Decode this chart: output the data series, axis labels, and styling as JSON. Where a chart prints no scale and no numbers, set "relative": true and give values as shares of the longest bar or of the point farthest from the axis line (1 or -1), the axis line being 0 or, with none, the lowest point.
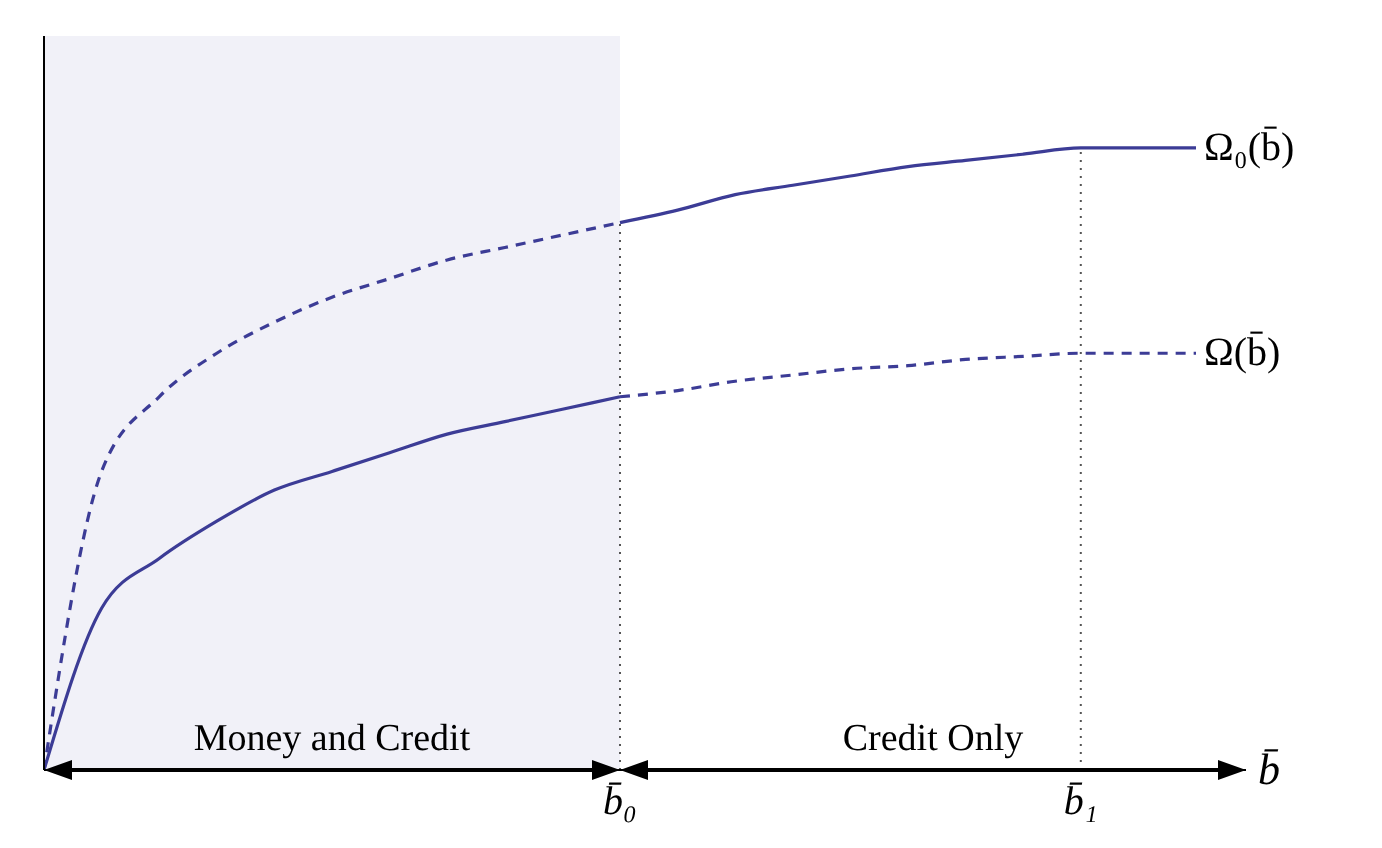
{
  "chart_data": {
    "type": "line",
    "relative": true,
    "xlabel": "b̄",
    "categories": [
      null,
      null,
      null,
      null,
      null,
      null,
      null,
      null,
      null,
      null,
      "b̄₀",
      null,
      null,
      null,
      null,
      null,
      null,
      null,
      "b̄₁",
      null,
      null
    ],
    "series": [
      {
        "color": "#3c3c96",
        "line_style": "dashed",
        "values": [
          0,
          0.48,
          0.6,
          0.67,
          0.72,
          0.76,
          0.79,
          0.82,
          0.84,
          0.86,
          0.88,
          null,
          null,
          null,
          null,
          null,
          null,
          null,
          null,
          null,
          null
        ]
      },
      {
        "name": "Ω₀(b̄)",
        "color": "#3c3c96",
        "line_style": "solid",
        "values": [
          null,
          null,
          null,
          null,
          null,
          null,
          null,
          null,
          null,
          null,
          0.88,
          0.9,
          0.925,
          0.94,
          0.955,
          0.97,
          0.98,
          0.99,
          1,
          1,
          1
        ]
      },
      {
        "color": "#3c3c96",
        "line_style": "solid",
        "values": [
          0,
          0.26,
          0.34,
          0.4,
          0.45,
          0.48,
          0.51,
          0.54,
          0.56,
          0.58,
          0.6,
          null,
          null,
          null,
          null,
          null,
          null,
          null,
          null,
          null,
          null
        ]
      },
      {
        "name": "Ω(b̄)",
        "color": "#3c3c96",
        "line_style": "dashed",
        "values": [
          null,
          null,
          null,
          null,
          null,
          null,
          null,
          null,
          null,
          null,
          0.6,
          0.61,
          0.625,
          0.635,
          0.645,
          0.65,
          0.66,
          0.665,
          0.67,
          0.67,
          0.67
        ]
      }
    ],
    "ref_lines": [
      {
        "axis": "x",
        "value": "b̄₀",
        "line_style": "dotted",
        "color": "#555555"
      },
      {
        "axis": "x",
        "value": "b̄₁",
        "line_style": "dotted",
        "color": "#555555"
      }
    ],
    "annotations": [
      "Money and Credit",
      "Credit Only"
    ],
    "marker": "none",
    "grid": false,
    "legend": false
  }
}
